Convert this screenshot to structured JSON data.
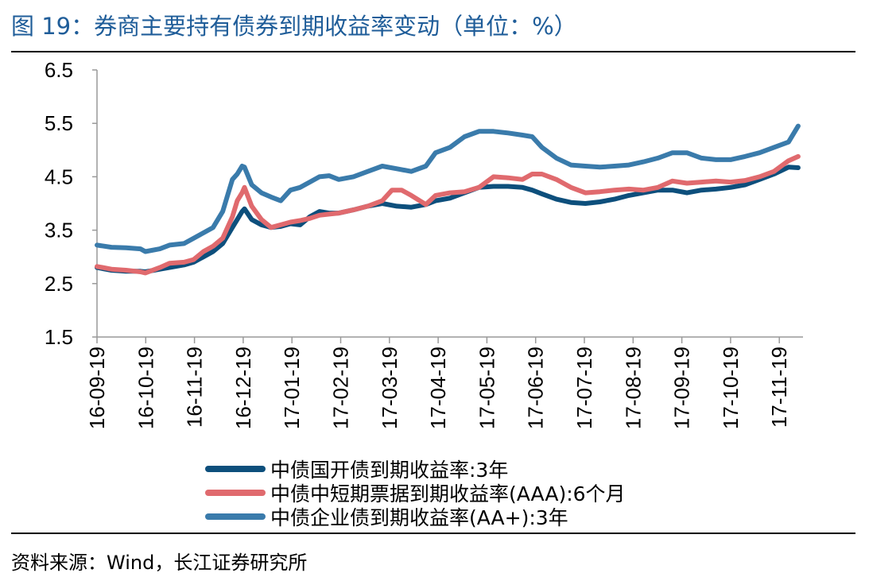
{
  "figure": {
    "title": "图 19：券商主要持有债券到期收益率变动（单位：%）",
    "source": "资料来源：Wind，长江证券研究所"
  },
  "chart_data": {
    "type": "line",
    "title": "券商主要持有债券到期收益率变动（单位：%）",
    "ylabel": "%",
    "ylim": [
      1.5,
      6.5
    ],
    "yticks": [
      1.5,
      2.5,
      3.5,
      4.5,
      5.5,
      6.5
    ],
    "ytick_labels": [
      "1.5",
      "2.5",
      "3.5",
      "4.5",
      "5.5",
      "6.5"
    ],
    "xlim": [
      0,
      14.6
    ],
    "xtick_labels": [
      "16-09-19",
      "16-10-19",
      "16-11-19",
      "16-12-19",
      "17-01-19",
      "17-02-19",
      "17-03-19",
      "17-04-19",
      "17-05-19",
      "17-06-19",
      "17-07-19",
      "17-08-19",
      "17-09-19",
      "17-10-19",
      "17-11-19"
    ],
    "legend_position": "bottom",
    "series": [
      {
        "name": "中债国开债到期收益率:3年",
        "color": "#0d4f7c",
        "x": [
          0,
          0.3,
          0.6,
          0.9,
          1.0,
          1.3,
          1.5,
          1.8,
          2.0,
          2.2,
          2.4,
          2.6,
          2.8,
          2.9,
          3.0,
          3.05,
          3.2,
          3.4,
          3.6,
          3.8,
          4.0,
          4.2,
          4.4,
          4.6,
          4.8,
          5.0,
          5.3,
          5.6,
          5.9,
          6.2,
          6.5,
          6.8,
          7.0,
          7.3,
          7.6,
          7.9,
          8.2,
          8.5,
          8.8,
          9.0,
          9.2,
          9.5,
          9.8,
          10.1,
          10.4,
          10.7,
          11.0,
          11.3,
          11.6,
          11.9,
          12.2,
          12.5,
          12.8,
          13.1,
          13.4,
          13.7,
          14.0,
          14.3,
          14.5
        ],
        "values": [
          2.8,
          2.75,
          2.73,
          2.73,
          2.72,
          2.77,
          2.8,
          2.85,
          2.9,
          3.0,
          3.1,
          3.25,
          3.55,
          3.7,
          3.85,
          3.9,
          3.7,
          3.6,
          3.55,
          3.57,
          3.62,
          3.6,
          3.75,
          3.85,
          3.82,
          3.82,
          3.88,
          3.95,
          4.0,
          3.95,
          3.93,
          3.98,
          4.05,
          4.1,
          4.2,
          4.3,
          4.32,
          4.32,
          4.3,
          4.25,
          4.18,
          4.08,
          4.02,
          4.0,
          4.03,
          4.08,
          4.15,
          4.2,
          4.25,
          4.25,
          4.2,
          4.25,
          4.27,
          4.3,
          4.35,
          4.45,
          4.55,
          4.68,
          4.67
        ]
      },
      {
        "name": "中债中短期票据到期收益率(AAA):6个月",
        "color": "#e06a6e",
        "x": [
          0,
          0.3,
          0.6,
          0.9,
          1.0,
          1.3,
          1.5,
          1.8,
          2.0,
          2.2,
          2.4,
          2.6,
          2.8,
          2.9,
          3.0,
          3.05,
          3.2,
          3.4,
          3.6,
          3.8,
          4.0,
          4.2,
          4.4,
          4.6,
          4.8,
          5.0,
          5.3,
          5.6,
          5.9,
          6.1,
          6.3,
          6.5,
          6.8,
          7.0,
          7.3,
          7.6,
          7.9,
          8.2,
          8.5,
          8.8,
          9.0,
          9.2,
          9.5,
          9.8,
          10.1,
          10.4,
          10.7,
          11.0,
          11.3,
          11.6,
          11.9,
          12.2,
          12.5,
          12.8,
          13.1,
          13.4,
          13.7,
          14.0,
          14.3,
          14.5
        ],
        "values": [
          2.82,
          2.77,
          2.75,
          2.72,
          2.7,
          2.8,
          2.88,
          2.9,
          2.95,
          3.1,
          3.2,
          3.35,
          3.75,
          4.05,
          4.2,
          4.3,
          3.95,
          3.7,
          3.55,
          3.6,
          3.65,
          3.68,
          3.72,
          3.78,
          3.8,
          3.82,
          3.88,
          3.95,
          4.05,
          4.25,
          4.25,
          4.15,
          3.98,
          4.15,
          4.2,
          4.22,
          4.3,
          4.5,
          4.48,
          4.45,
          4.55,
          4.55,
          4.45,
          4.3,
          4.2,
          4.22,
          4.25,
          4.27,
          4.25,
          4.3,
          4.42,
          4.38,
          4.4,
          4.42,
          4.4,
          4.43,
          4.5,
          4.6,
          4.8,
          4.88
        ]
      },
      {
        "name": "中债企业债到期收益率(AA+):3年",
        "color": "#3a7bab",
        "x": [
          0,
          0.3,
          0.6,
          0.9,
          1.0,
          1.3,
          1.5,
          1.8,
          2.0,
          2.2,
          2.4,
          2.6,
          2.8,
          2.9,
          3.0,
          3.05,
          3.2,
          3.4,
          3.6,
          3.8,
          4.0,
          4.2,
          4.4,
          4.6,
          4.8,
          5.0,
          5.3,
          5.6,
          5.9,
          6.2,
          6.5,
          6.8,
          7.0,
          7.3,
          7.6,
          7.9,
          8.2,
          8.5,
          8.8,
          9.0,
          9.2,
          9.5,
          9.8,
          10.1,
          10.4,
          10.7,
          11.0,
          11.3,
          11.6,
          11.9,
          12.2,
          12.5,
          12.8,
          13.1,
          13.4,
          13.7,
          14.0,
          14.3,
          14.5
        ],
        "values": [
          3.22,
          3.18,
          3.17,
          3.15,
          3.1,
          3.15,
          3.22,
          3.25,
          3.35,
          3.45,
          3.55,
          3.85,
          4.45,
          4.55,
          4.7,
          4.68,
          4.35,
          4.2,
          4.12,
          4.05,
          4.25,
          4.3,
          4.4,
          4.5,
          4.52,
          4.45,
          4.5,
          4.6,
          4.7,
          4.65,
          4.6,
          4.7,
          4.95,
          5.05,
          5.25,
          5.35,
          5.35,
          5.32,
          5.28,
          5.25,
          5.05,
          4.85,
          4.72,
          4.7,
          4.68,
          4.7,
          4.72,
          4.78,
          4.85,
          4.95,
          4.95,
          4.85,
          4.82,
          4.82,
          4.88,
          4.95,
          5.05,
          5.15,
          5.45
        ]
      }
    ]
  }
}
